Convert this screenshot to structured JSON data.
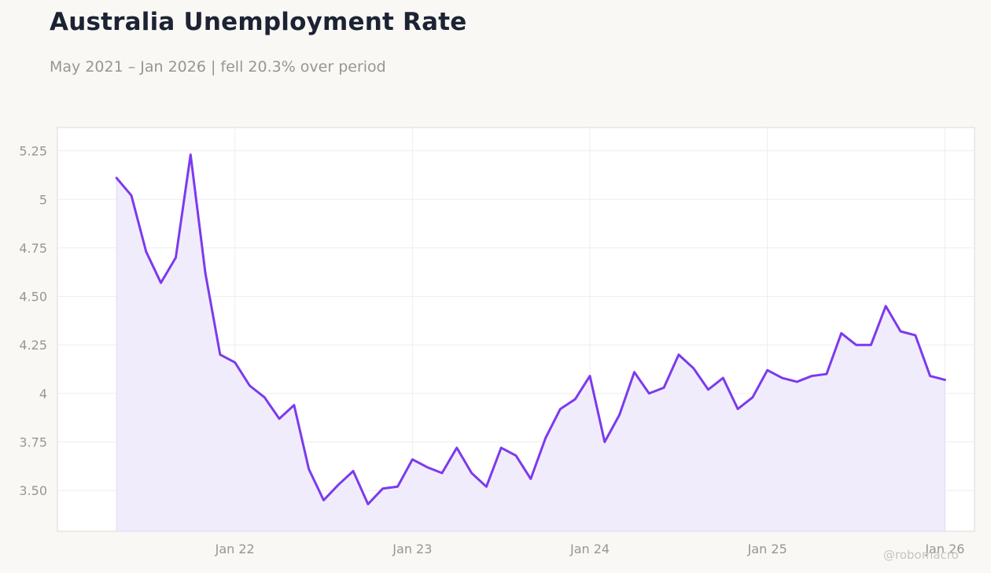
{
  "title": "Australia Unemployment Rate",
  "subtitle": "May 2021 – Jan 2026 | fell 20.3% over period",
  "watermark": "@robomacro",
  "colors": {
    "line": "#7c3aed",
    "fill": "#f1ecfc",
    "background": "#f9f8f5",
    "plot_background": "#ffffff"
  },
  "chart_data": {
    "type": "area",
    "title": "Australia Unemployment Rate",
    "xlabel": "",
    "ylabel": "",
    "x": [
      "2021-05",
      "2021-06",
      "2021-07",
      "2021-08",
      "2021-09",
      "2021-10",
      "2021-11",
      "2021-12",
      "2022-01",
      "2022-02",
      "2022-03",
      "2022-04",
      "2022-05",
      "2022-06",
      "2022-07",
      "2022-08",
      "2022-09",
      "2022-10",
      "2022-11",
      "2022-12",
      "2023-01",
      "2023-02",
      "2023-03",
      "2023-04",
      "2023-05",
      "2023-06",
      "2023-07",
      "2023-08",
      "2023-09",
      "2023-10",
      "2023-11",
      "2023-12",
      "2024-01",
      "2024-02",
      "2024-03",
      "2024-04",
      "2024-05",
      "2024-06",
      "2024-07",
      "2024-08",
      "2024-09",
      "2024-10",
      "2024-11",
      "2024-12",
      "2025-01",
      "2025-02",
      "2025-03",
      "2025-04",
      "2025-05",
      "2025-06",
      "2025-07",
      "2025-08",
      "2025-09",
      "2025-10",
      "2025-11",
      "2025-12",
      "2026-01"
    ],
    "series": [
      {
        "values": [
          5.11,
          5.02,
          4.73,
          4.57,
          4.7,
          5.23,
          4.62,
          4.2,
          4.16,
          4.04,
          3.98,
          3.87,
          3.94,
          3.61,
          3.45,
          3.53,
          3.6,
          3.43,
          3.51,
          3.52,
          3.66,
          3.62,
          3.59,
          3.72,
          3.59,
          3.52,
          3.72,
          3.68,
          3.56,
          3.77,
          3.92,
          3.97,
          4.09,
          3.75,
          3.89,
          4.11,
          4.0,
          4.03,
          4.2,
          4.13,
          4.02,
          4.08,
          3.92,
          3.98,
          4.12,
          4.08,
          4.06,
          4.09,
          4.1,
          4.31,
          4.25,
          4.25,
          4.45,
          4.32,
          4.3,
          4.09,
          4.07
        ]
      }
    ],
    "x_ticks": [
      "Jan 22",
      "Jan 23",
      "Jan 24",
      "Jan 25",
      "Jan 26"
    ],
    "x_tick_dates": [
      "2022-01",
      "2023-01",
      "2024-01",
      "2025-01",
      "2026-01"
    ],
    "y_ticks": [
      3.5,
      3.75,
      4,
      4.25,
      4.5,
      4.75,
      5,
      5.25
    ],
    "y_tick_labels": [
      "3.50",
      "3.75",
      "4",
      "4.25",
      "4.50",
      "4.75",
      "5",
      "5.25"
    ],
    "ylim": [
      3.29,
      5.37
    ],
    "xlim": [
      "2021-01",
      "2026-03"
    ],
    "grid": true,
    "legend": "none"
  }
}
